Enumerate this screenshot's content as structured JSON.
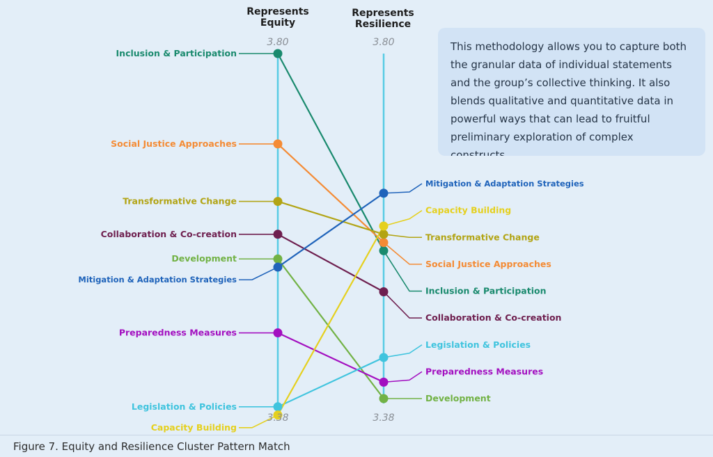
{
  "chart_data": {
    "type": "line",
    "axes": [
      {
        "label": "Represents Equity",
        "max_label": "3.80",
        "min_label": "3.38"
      },
      {
        "label": "Represents Resilience",
        "max_label": "3.80",
        "min_label": "3.38"
      }
    ],
    "ylim": [
      3.38,
      3.8
    ],
    "series": [
      {
        "name": "Inclusion & Participation",
        "color": "#1a8a6e",
        "values": [
          3.8,
          3.56
        ]
      },
      {
        "name": "Social Justice Approaches",
        "color": "#f48b35",
        "values": [
          3.69,
          3.57
        ]
      },
      {
        "name": "Transformative Change",
        "color": "#b2a414",
        "values": [
          3.62,
          3.58
        ]
      },
      {
        "name": "Collaboration & Co-creation",
        "color": "#6e1f4f",
        "values": [
          3.58,
          3.51
        ]
      },
      {
        "name": "Development",
        "color": "#72b245",
        "values": [
          3.55,
          3.38
        ]
      },
      {
        "name": "Mitigation & Adaptation Strategies",
        "color": "#1f63ba",
        "values": [
          3.54,
          3.63
        ]
      },
      {
        "name": "Preparedness Measures",
        "color": "#a310c0",
        "values": [
          3.46,
          3.4
        ]
      },
      {
        "name": "Legislation & Policies",
        "color": "#40c4de",
        "values": [
          3.37,
          3.43
        ]
      },
      {
        "name": "Capacity Building",
        "color": "#e5d01e",
        "values": [
          3.36,
          3.59
        ]
      }
    ],
    "axis_line_color": "#58cbe4"
  },
  "callout": {
    "text": "This methodology allows you to capture both the granular data of individual statements and the group’s collective thinking. It also blends qualitative and quantitative data in powerful ways that can lead to fruitful preliminary exploration of complex constructs."
  },
  "caption": "Figure 7. Equity and Resilience Cluster Pattern Match"
}
